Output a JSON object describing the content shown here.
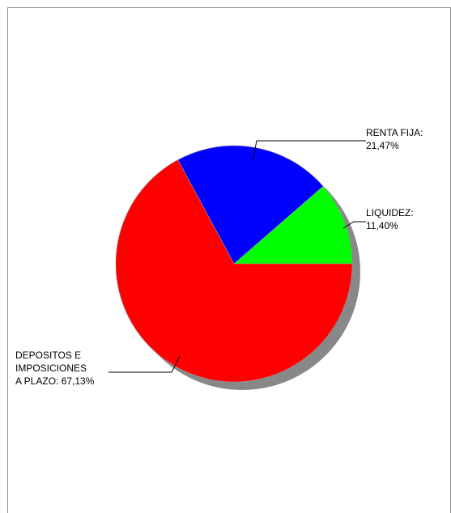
{
  "chart_data": {
    "type": "pie",
    "title": "",
    "legend": "none",
    "slices": [
      {
        "name": "LIQUIDEZ",
        "value": 11.4,
        "color": "#00ff00",
        "label_lines": [
          "LIQUIDEZ:",
          "11,40%"
        ]
      },
      {
        "name": "RENTA FIJA",
        "value": 21.47,
        "color": "#0000ff",
        "label_lines": [
          "RENTA FIJA:",
          "21,47%"
        ]
      },
      {
        "name": "DEPOSITOS E IMPOSICIONES A PLAZO",
        "value": 67.13,
        "color": "#ff0000",
        "label_lines": [
          "DEPOSITOS E",
          "IMPOSICIONES",
          "A PLAZO: 67,13%"
        ]
      }
    ],
    "shadow_color": "#888888"
  }
}
